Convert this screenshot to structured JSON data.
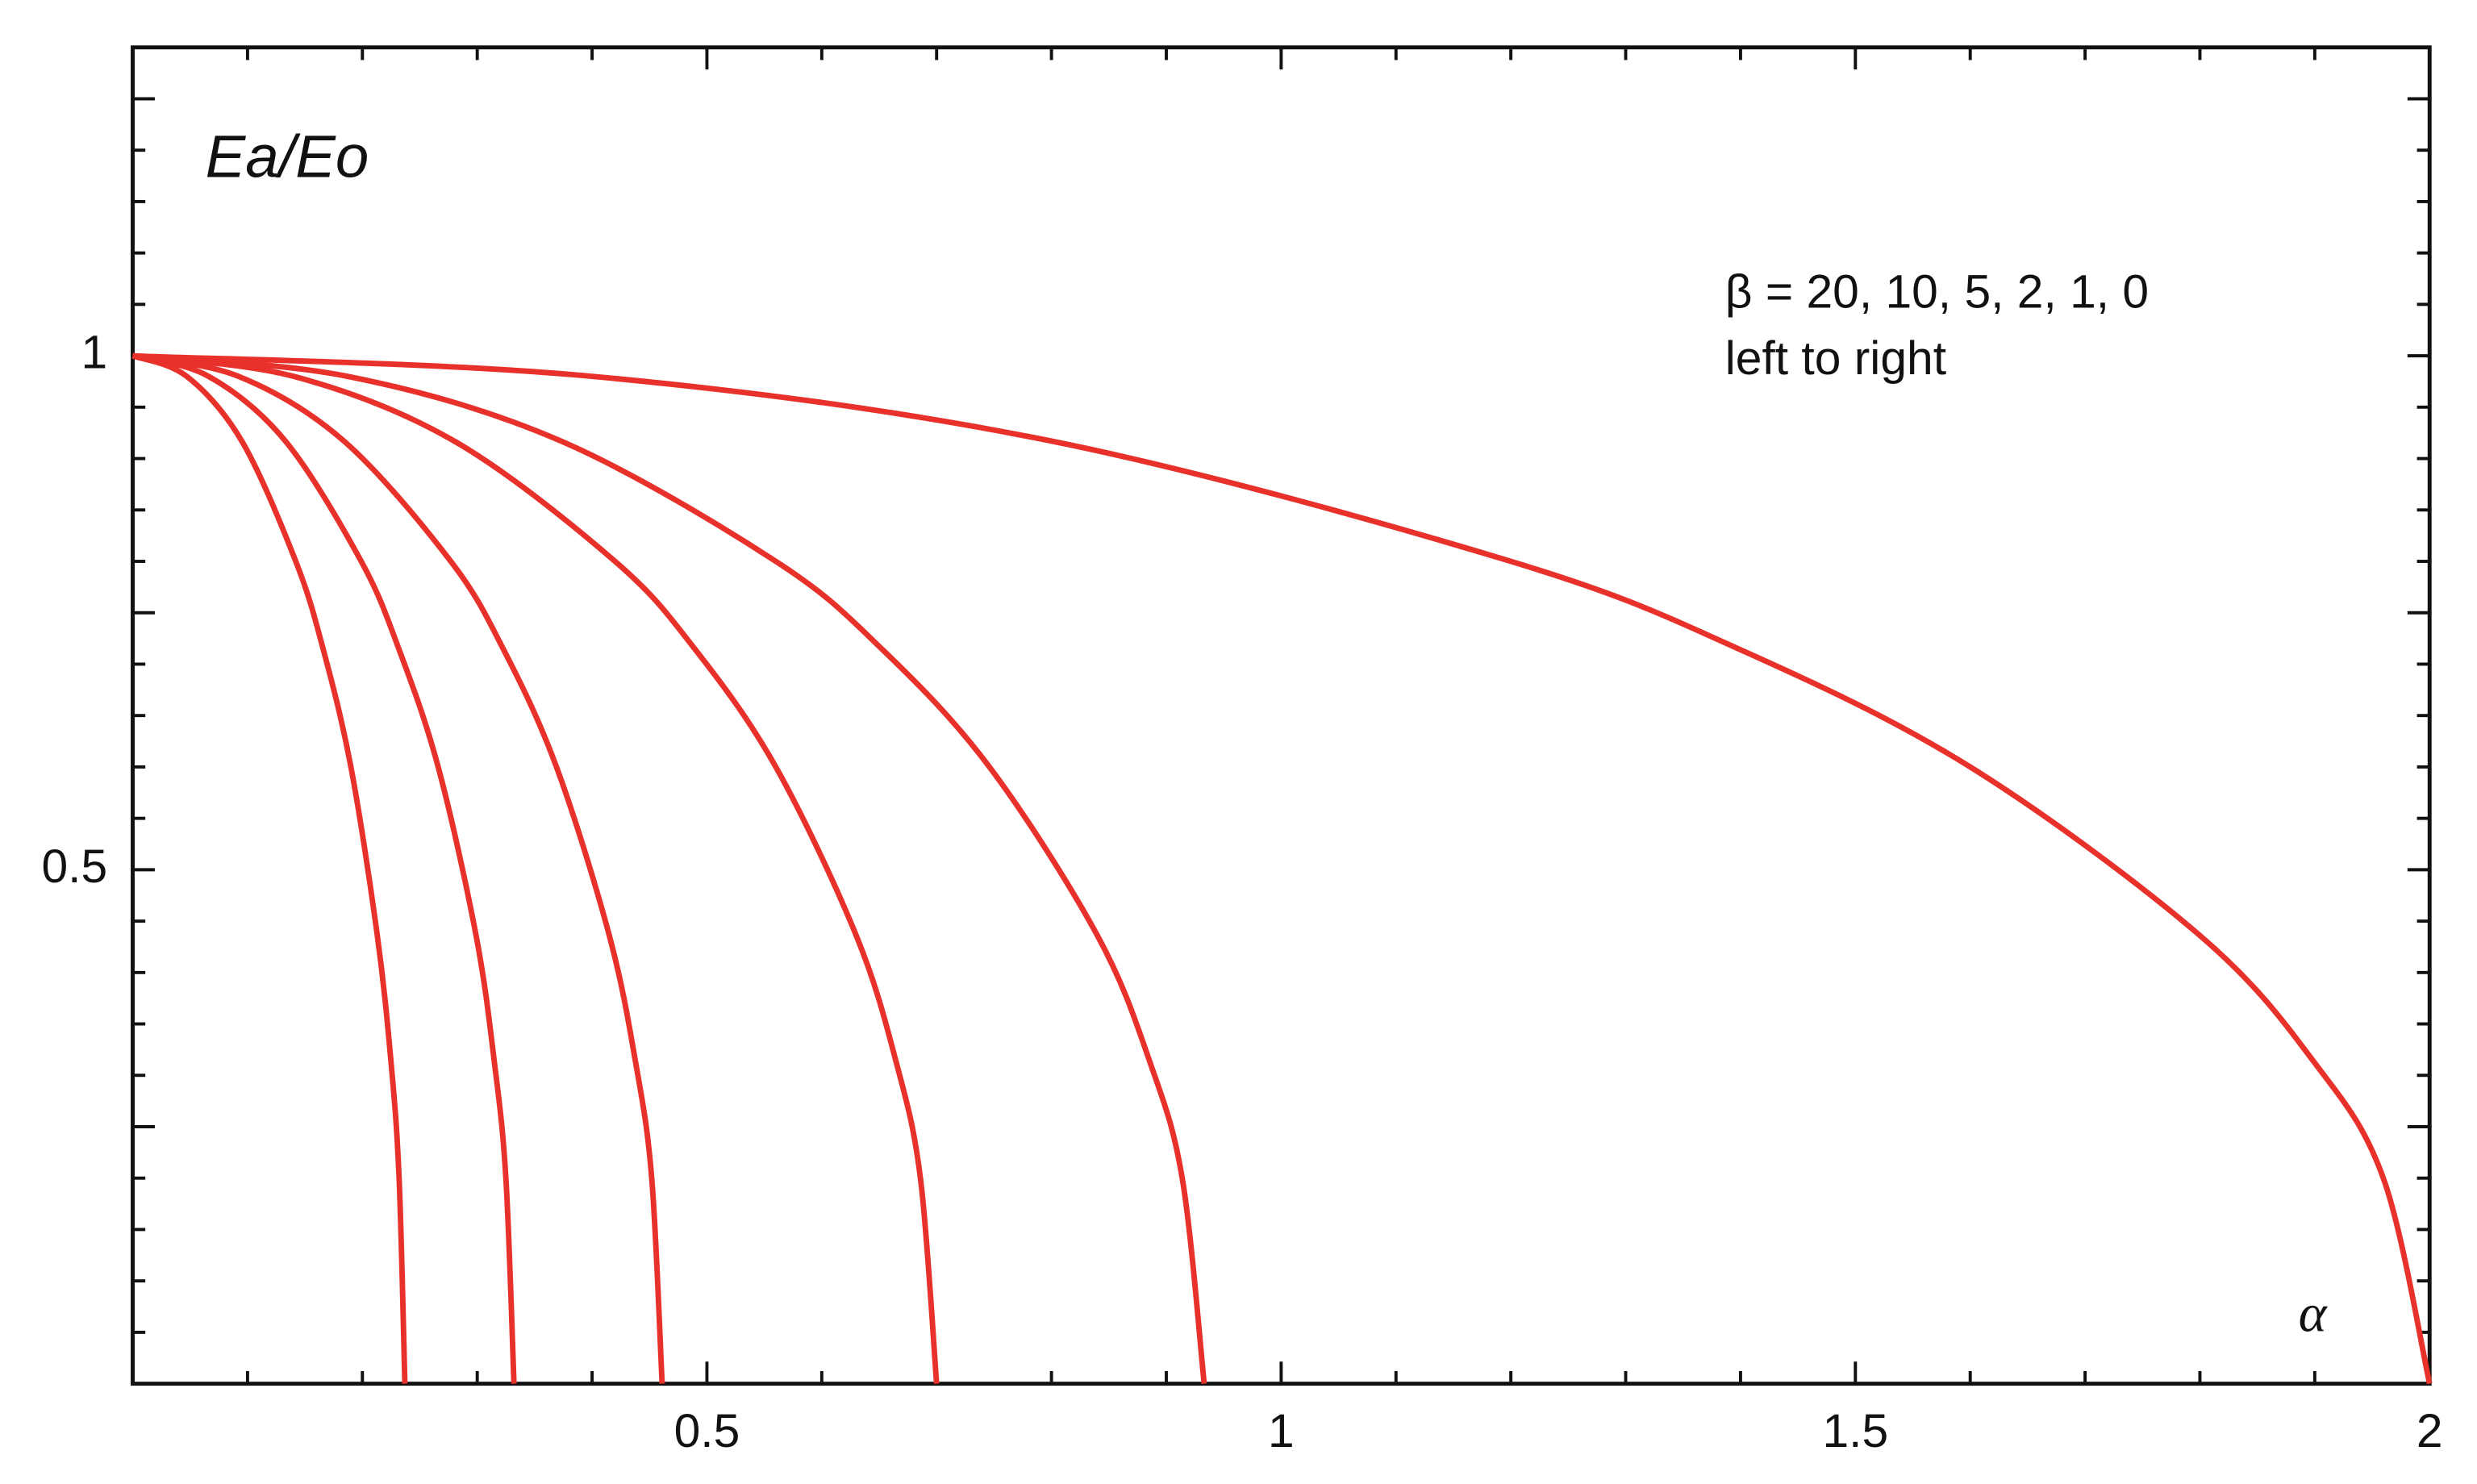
{
  "chart_data": {
    "type": "line",
    "ylabel": "Ea/Eo",
    "xlabel": "α",
    "annotations": [
      "β = 20, 10, 5, 2, 1, 0",
      "left to right"
    ],
    "series": [
      {
        "color": "#e8312b",
        "x": [
          0,
          0.047,
          0.095,
          0.142,
          0.166,
          0.19,
          0.213,
          0.225,
          0.232,
          0.237
        ],
        "values": [
          1,
          0.98,
          0.917,
          0.8,
          0.714,
          0.6,
          0.436,
          0.312,
          0.199,
          0
        ]
      },
      {
        "color": "#e8312b",
        "x": [
          0,
          0.066,
          0.133,
          0.199,
          0.232,
          0.266,
          0.299,
          0.315,
          0.325,
          0.332
        ],
        "values": [
          1,
          0.98,
          0.917,
          0.8,
          0.714,
          0.6,
          0.436,
          0.312,
          0.199,
          0
        ]
      },
      {
        "color": "#e8312b",
        "x": [
          0,
          0.092,
          0.184,
          0.277,
          0.323,
          0.369,
          0.415,
          0.438,
          0.452,
          0.461
        ],
        "values": [
          1,
          0.98,
          0.917,
          0.8,
          0.714,
          0.6,
          0.436,
          0.312,
          0.199,
          0
        ]
      },
      {
        "color": "#e8312b",
        "x": [
          0,
          0.14,
          0.28,
          0.42,
          0.49,
          0.56,
          0.63,
          0.665,
          0.686,
          0.7
        ],
        "values": [
          1,
          0.98,
          0.917,
          0.8,
          0.714,
          0.6,
          0.436,
          0.312,
          0.199,
          0
        ]
      },
      {
        "color": "#e8312b",
        "x": [
          0,
          0.187,
          0.373,
          0.56,
          0.653,
          0.746,
          0.84,
          0.886,
          0.914,
          0.933
        ],
        "values": [
          1,
          0.98,
          0.917,
          0.8,
          0.714,
          0.6,
          0.436,
          0.312,
          0.199,
          0
        ]
      },
      {
        "color": "#e8312b",
        "x": [
          0,
          0.4,
          0.8,
          1.2,
          1.4,
          1.6,
          1.8,
          1.9,
          1.96,
          2
        ],
        "values": [
          1,
          0.98,
          0.917,
          0.8,
          0.714,
          0.6,
          0.436,
          0.312,
          0.199,
          0
        ]
      }
    ],
    "xlim": [
      0,
      2
    ],
    "ylim": [
      0,
      1.3
    ],
    "xticks": [
      0.5,
      1,
      1.5,
      2
    ],
    "xticks_unlabeled": [
      0.1,
      0.2,
      0.3,
      0.4,
      0.6,
      0.7,
      0.8,
      0.9,
      1.1,
      1.2,
      1.3,
      1.4,
      1.6,
      1.7,
      1.8,
      1.9
    ],
    "yticks": [
      0.5,
      1
    ],
    "yticks_unlabeled_major": [
      0.25,
      0.75,
      1.25
    ],
    "yticks_unlabeled_minor": [
      0.05,
      0.1,
      0.15,
      0.2,
      0.3,
      0.35,
      0.4,
      0.45,
      0.55,
      0.6,
      0.65,
      0.7,
      0.8,
      0.85,
      0.9,
      0.95,
      1.05,
      1.1,
      1.15,
      1.2
    ],
    "grid": false
  }
}
